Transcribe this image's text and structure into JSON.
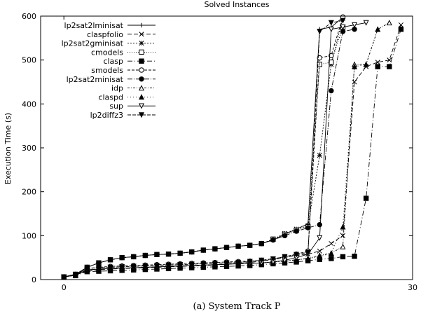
{
  "chart_data": {
    "type": "line",
    "title": "Solved Instances",
    "xlabel": "",
    "ylabel": "Execution Time (s)",
    "caption": "(a) System Track P",
    "xlim": [
      -2,
      30
    ],
    "ylim": [
      0,
      600
    ],
    "x_ticks": [
      0,
      30
    ],
    "y_ticks": [
      0,
      100,
      200,
      300,
      400,
      500,
      600
    ],
    "legend_position": "top-left",
    "series": [
      {
        "name": "lp2sat2lminisat",
        "marker": "plus",
        "dash": "",
        "points": [
          [
            0,
            6
          ],
          [
            1,
            12
          ],
          [
            2,
            28
          ],
          [
            3,
            38
          ],
          [
            4,
            45
          ],
          [
            5,
            50
          ],
          [
            6,
            52
          ],
          [
            7,
            55
          ],
          [
            8,
            57
          ],
          [
            9,
            58
          ],
          [
            10,
            60
          ],
          [
            11,
            63
          ],
          [
            12,
            67
          ],
          [
            13,
            70
          ],
          [
            14,
            73
          ],
          [
            15,
            76
          ],
          [
            16,
            78
          ],
          [
            17,
            82
          ],
          [
            18,
            90
          ],
          [
            19,
            103
          ],
          [
            20,
            115
          ],
          [
            21,
            127
          ],
          [
            22,
            570
          ],
          [
            23,
            575
          ],
          [
            24,
            597
          ]
        ]
      },
      {
        "name": "claspfolio",
        "marker": "x",
        "dash": "6,3",
        "points": [
          [
            0,
            6
          ],
          [
            1,
            10
          ],
          [
            2,
            20
          ],
          [
            3,
            22
          ],
          [
            4,
            24
          ],
          [
            5,
            25
          ],
          [
            6,
            26
          ],
          [
            7,
            27
          ],
          [
            8,
            28
          ],
          [
            9,
            29
          ],
          [
            10,
            30
          ],
          [
            11,
            31
          ],
          [
            12,
            32
          ],
          [
            13,
            33
          ],
          [
            14,
            35
          ],
          [
            15,
            37
          ],
          [
            16,
            39
          ],
          [
            17,
            42
          ],
          [
            18,
            46
          ],
          [
            19,
            50
          ],
          [
            20,
            55
          ],
          [
            21,
            58
          ],
          [
            22,
            65
          ],
          [
            23,
            82
          ],
          [
            24,
            100
          ],
          [
            25,
            450
          ],
          [
            26,
            485
          ],
          [
            27,
            495
          ],
          [
            28,
            500
          ],
          [
            29,
            580
          ]
        ]
      },
      {
        "name": "lp2sat2gminisat",
        "marker": "star",
        "dash": "2,2",
        "points": [
          [
            0,
            6
          ],
          [
            1,
            12
          ],
          [
            2,
            28
          ],
          [
            3,
            38
          ],
          [
            4,
            45
          ],
          [
            5,
            50
          ],
          [
            6,
            52
          ],
          [
            7,
            55
          ],
          [
            8,
            57
          ],
          [
            9,
            58
          ],
          [
            10,
            60
          ],
          [
            11,
            63
          ],
          [
            12,
            67
          ],
          [
            13,
            70
          ],
          [
            14,
            73
          ],
          [
            15,
            76
          ],
          [
            16,
            78
          ],
          [
            17,
            82
          ],
          [
            18,
            92
          ],
          [
            19,
            105
          ],
          [
            20,
            115
          ],
          [
            21,
            122
          ],
          [
            22,
            283
          ],
          [
            23,
            490
          ],
          [
            24,
            595
          ]
        ]
      },
      {
        "name": "cmodels",
        "marker": "square-open",
        "dash": "1,2",
        "points": [
          [
            0,
            6
          ],
          [
            1,
            12
          ],
          [
            2,
            28
          ],
          [
            3,
            38
          ],
          [
            4,
            45
          ],
          [
            5,
            50
          ],
          [
            6,
            52
          ],
          [
            7,
            55
          ],
          [
            8,
            57
          ],
          [
            9,
            58
          ],
          [
            10,
            60
          ],
          [
            11,
            63
          ],
          [
            12,
            67
          ],
          [
            13,
            70
          ],
          [
            14,
            73
          ],
          [
            15,
            76
          ],
          [
            16,
            78
          ],
          [
            17,
            82
          ],
          [
            18,
            92
          ],
          [
            19,
            103
          ],
          [
            20,
            112
          ],
          [
            21,
            120
          ],
          [
            22,
            490
          ],
          [
            23,
            495
          ],
          [
            24,
            575
          ]
        ]
      },
      {
        "name": "clasp",
        "marker": "square",
        "dash": "7,3,1,3",
        "points": [
          [
            0,
            6
          ],
          [
            1,
            9
          ],
          [
            2,
            18
          ],
          [
            3,
            19
          ],
          [
            4,
            20
          ],
          [
            5,
            21
          ],
          [
            6,
            22
          ],
          [
            7,
            23
          ],
          [
            8,
            24
          ],
          [
            9,
            25
          ],
          [
            10,
            26
          ],
          [
            11,
            27
          ],
          [
            12,
            28
          ],
          [
            13,
            29
          ],
          [
            14,
            30
          ],
          [
            15,
            31
          ],
          [
            16,
            32
          ],
          [
            17,
            34
          ],
          [
            18,
            36
          ],
          [
            19,
            38
          ],
          [
            20,
            40
          ],
          [
            21,
            43
          ],
          [
            22,
            46
          ],
          [
            23,
            48
          ],
          [
            24,
            52
          ],
          [
            25,
            53
          ],
          [
            26,
            185
          ],
          [
            27,
            485
          ],
          [
            28,
            485
          ],
          [
            29,
            570
          ]
        ]
      },
      {
        "name": "smodels",
        "marker": "circle-open",
        "dash": "4,2",
        "points": [
          [
            0,
            6
          ],
          [
            1,
            11
          ],
          [
            2,
            25
          ],
          [
            3,
            28
          ],
          [
            4,
            30
          ],
          [
            5,
            31
          ],
          [
            6,
            32
          ],
          [
            7,
            33
          ],
          [
            8,
            34
          ],
          [
            9,
            35
          ],
          [
            10,
            36
          ],
          [
            11,
            37
          ],
          [
            12,
            38
          ],
          [
            13,
            39
          ],
          [
            14,
            40
          ],
          [
            15,
            41
          ],
          [
            16,
            42
          ],
          [
            17,
            44
          ],
          [
            18,
            47
          ],
          [
            19,
            52
          ],
          [
            20,
            58
          ],
          [
            21,
            65
          ],
          [
            22,
            505
          ],
          [
            23,
            510
          ],
          [
            24,
            598
          ]
        ]
      },
      {
        "name": "lp2sat2minisat",
        "marker": "circle",
        "dash": "7,2,1,2",
        "points": [
          [
            0,
            6
          ],
          [
            1,
            12
          ],
          [
            2,
            28
          ],
          [
            3,
            38
          ],
          [
            4,
            45
          ],
          [
            5,
            50
          ],
          [
            6,
            52
          ],
          [
            7,
            55
          ],
          [
            8,
            57
          ],
          [
            9,
            58
          ],
          [
            10,
            60
          ],
          [
            11,
            63
          ],
          [
            12,
            67
          ],
          [
            13,
            70
          ],
          [
            14,
            73
          ],
          [
            15,
            76
          ],
          [
            16,
            78
          ],
          [
            17,
            82
          ],
          [
            18,
            90
          ],
          [
            19,
            100
          ],
          [
            20,
            110
          ],
          [
            21,
            118
          ],
          [
            22,
            125
          ],
          [
            23,
            430
          ],
          [
            24,
            565
          ],
          [
            25,
            570
          ]
        ]
      },
      {
        "name": "idp",
        "marker": "triangle-open",
        "dash": "3,2,1,2",
        "points": [
          [
            0,
            6
          ],
          [
            1,
            10
          ],
          [
            2,
            22
          ],
          [
            3,
            24
          ],
          [
            4,
            25
          ],
          [
            5,
            26
          ],
          [
            6,
            27
          ],
          [
            7,
            28
          ],
          [
            8,
            29
          ],
          [
            9,
            30
          ],
          [
            10,
            31
          ],
          [
            11,
            32
          ],
          [
            12,
            33
          ],
          [
            13,
            34
          ],
          [
            14,
            35
          ],
          [
            15,
            36
          ],
          [
            16,
            37
          ],
          [
            17,
            38
          ],
          [
            18,
            40
          ],
          [
            19,
            42
          ],
          [
            20,
            45
          ],
          [
            21,
            48
          ],
          [
            22,
            55
          ],
          [
            23,
            60
          ],
          [
            24,
            75
          ],
          [
            25,
            490
          ],
          [
            26,
            490
          ],
          [
            27,
            570
          ],
          [
            28,
            585
          ]
        ]
      },
      {
        "name": "claspd",
        "marker": "triangle",
        "dash": "1,3",
        "points": [
          [
            0,
            6
          ],
          [
            1,
            10
          ],
          [
            2,
            22
          ],
          [
            3,
            24
          ],
          [
            4,
            25
          ],
          [
            5,
            26
          ],
          [
            6,
            27
          ],
          [
            7,
            28
          ],
          [
            8,
            29
          ],
          [
            9,
            30
          ],
          [
            10,
            31
          ],
          [
            11,
            32
          ],
          [
            12,
            33
          ],
          [
            13,
            34
          ],
          [
            14,
            35
          ],
          [
            15,
            36
          ],
          [
            16,
            37
          ],
          [
            17,
            38
          ],
          [
            18,
            40
          ],
          [
            19,
            42
          ],
          [
            20,
            45
          ],
          [
            21,
            48
          ],
          [
            22,
            52
          ],
          [
            23,
            60
          ],
          [
            24,
            120
          ],
          [
            25,
            485
          ],
          [
            26,
            490
          ],
          [
            27,
            570
          ]
        ]
      },
      {
        "name": "sup",
        "marker": "triangle-down-open",
        "dash": "",
        "points": [
          [
            0,
            6
          ],
          [
            1,
            10
          ],
          [
            2,
            22
          ],
          [
            3,
            24
          ],
          [
            4,
            25
          ],
          [
            5,
            26
          ],
          [
            6,
            27
          ],
          [
            7,
            28
          ],
          [
            8,
            29
          ],
          [
            9,
            30
          ],
          [
            10,
            31
          ],
          [
            11,
            32
          ],
          [
            12,
            33
          ],
          [
            13,
            34
          ],
          [
            14,
            35
          ],
          [
            15,
            36
          ],
          [
            16,
            37
          ],
          [
            17,
            38
          ],
          [
            18,
            40
          ],
          [
            19,
            44
          ],
          [
            20,
            50
          ],
          [
            21,
            58
          ],
          [
            22,
            95
          ],
          [
            23,
            570
          ],
          [
            24,
            575
          ],
          [
            25,
            580
          ],
          [
            26,
            585
          ]
        ]
      },
      {
        "name": "lp2diffz3",
        "marker": "triangle-down",
        "dash": "5,2",
        "points": [
          [
            0,
            6
          ],
          [
            1,
            11
          ],
          [
            2,
            25
          ],
          [
            3,
            27
          ],
          [
            4,
            28
          ],
          [
            5,
            29
          ],
          [
            6,
            30
          ],
          [
            7,
            31
          ],
          [
            8,
            32
          ],
          [
            9,
            33
          ],
          [
            10,
            34
          ],
          [
            11,
            35
          ],
          [
            12,
            36
          ],
          [
            13,
            37
          ],
          [
            14,
            38
          ],
          [
            15,
            39
          ],
          [
            16,
            41
          ],
          [
            17,
            44
          ],
          [
            18,
            47
          ],
          [
            19,
            52
          ],
          [
            20,
            57
          ],
          [
            21,
            62
          ],
          [
            22,
            565
          ],
          [
            23,
            585
          ],
          [
            24,
            590
          ]
        ]
      }
    ]
  }
}
